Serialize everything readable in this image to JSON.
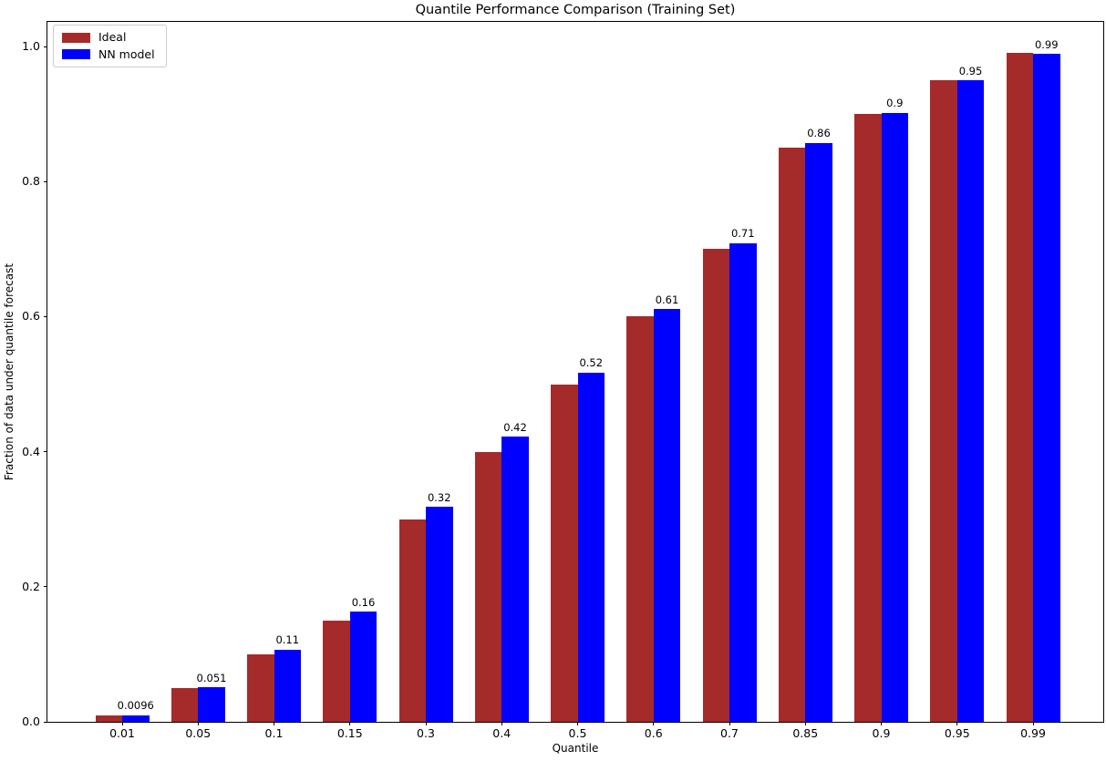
{
  "chart_data": {
    "type": "bar",
    "title": "Quantile Performance Comparison (Training Set)",
    "xlabel": "Quantile",
    "ylabel": "Fraction of data under quantile forecast",
    "categories": [
      "0.01",
      "0.05",
      "0.1",
      "0.15",
      "0.3",
      "0.4",
      "0.5",
      "0.6",
      "0.7",
      "0.85",
      "0.9",
      "0.95",
      "0.99"
    ],
    "series": [
      {
        "name": "Ideal",
        "color": "#a52a2a",
        "values": [
          0.01,
          0.05,
          0.1,
          0.15,
          0.3,
          0.4,
          0.5,
          0.6,
          0.7,
          0.85,
          0.9,
          0.95,
          0.99
        ]
      },
      {
        "name": "NN model",
        "color": "#0000ff",
        "values": [
          0.0096,
          0.051,
          0.107,
          0.163,
          0.318,
          0.422,
          0.517,
          0.611,
          0.709,
          0.857,
          0.902,
          0.95,
          0.989
        ]
      }
    ],
    "bar_labels": [
      "0.0096",
      "0.051",
      "0.11",
      "0.16",
      "0.32",
      "0.42",
      "0.52",
      "0.61",
      "0.71",
      "0.86",
      "0.9",
      "0.95",
      "0.99"
    ],
    "bar_labels_on_series": "NN model",
    "ytick_labels": [
      "0.0",
      "0.2",
      "0.4",
      "0.6",
      "0.8",
      "1.0"
    ],
    "ytick_values": [
      0,
      0.2,
      0.4,
      0.6,
      0.8,
      1.0
    ],
    "ylim": [
      0,
      1.04
    ],
    "legend_position": "upper left",
    "grid": false,
    "background": "#ffffff",
    "text_color": "#000000"
  }
}
